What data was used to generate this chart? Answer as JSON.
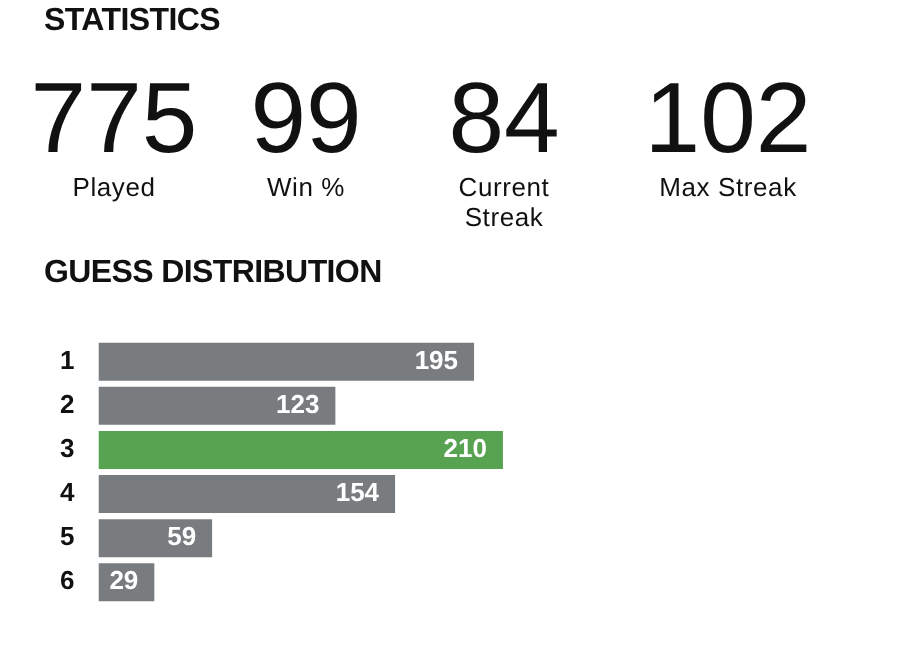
{
  "chart_data": [
    {
      "type": "other",
      "title": "STATISTICS",
      "categories": [
        "Played",
        "Win %",
        "Current Streak",
        "Max Streak"
      ],
      "values": [
        775,
        99,
        84,
        102
      ],
      "data_labels": true
    },
    {
      "type": "bar",
      "title": "GUESS DISTRIBUTION",
      "orientation": "horizontal",
      "categories": [
        "1",
        "2",
        "3",
        "4",
        "5",
        "6"
      ],
      "values": [
        195,
        123,
        210,
        154,
        59,
        29
      ],
      "colors": [
        "#787c7e",
        "#787c7e",
        "#58a351",
        "#787c7e",
        "#787c7e",
        "#787c7e"
      ],
      "tick_labels": "y",
      "grid": false,
      "legend": false,
      "data_labels": true
    }
  ]
}
